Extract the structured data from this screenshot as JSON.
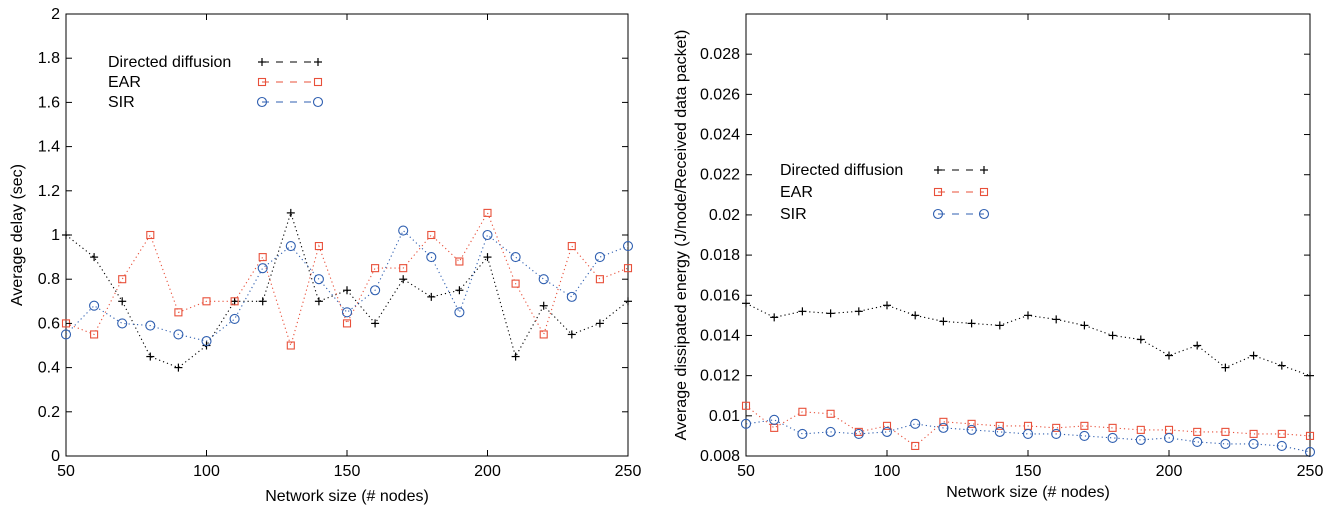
{
  "chart_data": [
    {
      "type": "scatter",
      "title": "",
      "xlabel": "Network size (# nodes)",
      "ylabel": "Average delay (sec)",
      "xlim": [
        50,
        250
      ],
      "ylim": [
        0,
        2
      ],
      "xticks": [
        "50",
        "100",
        "150",
        "200",
        "250"
      ],
      "yticks": [
        "0",
        "0.2",
        "0.4",
        "0.6",
        "0.8",
        "1",
        "1.2",
        "1.4",
        "1.6",
        "1.8",
        "2"
      ],
      "legend_position": "top-left",
      "grid": false,
      "x": [
        50,
        60,
        70,
        80,
        90,
        100,
        110,
        120,
        130,
        140,
        150,
        160,
        170,
        180,
        190,
        200,
        210,
        220,
        230,
        240,
        250
      ],
      "series": [
        {
          "name": "Directed diffusion",
          "marker": "plus",
          "color": "#000000",
          "values": [
            1.0,
            0.9,
            0.7,
            0.45,
            0.4,
            0.5,
            0.7,
            0.7,
            1.1,
            0.7,
            0.75,
            0.6,
            0.8,
            0.72,
            0.75,
            0.9,
            0.45,
            0.68,
            0.55,
            0.6,
            0.7
          ]
        },
        {
          "name": "EAR",
          "marker": "square",
          "color": "#e8503a",
          "values": [
            0.6,
            0.55,
            0.8,
            1.0,
            0.65,
            0.7,
            0.7,
            0.9,
            0.5,
            0.95,
            0.6,
            0.85,
            0.85,
            1.0,
            0.88,
            1.1,
            0.78,
            0.55,
            0.95,
            0.8,
            0.85
          ]
        },
        {
          "name": "SIR",
          "marker": "circle",
          "color": "#2f5fb0",
          "values": [
            0.55,
            0.68,
            0.6,
            0.59,
            0.55,
            0.52,
            0.62,
            0.85,
            0.95,
            0.8,
            0.65,
            0.75,
            1.02,
            0.9,
            0.65,
            1.0,
            0.9,
            0.8,
            0.72,
            0.9,
            0.95
          ]
        }
      ]
    },
    {
      "type": "scatter",
      "title": "",
      "xlabel": "Network size (# nodes)",
      "ylabel": "Average dissipated energy (J/node/Received data packet)",
      "xlim": [
        50,
        250
      ],
      "ylim": [
        0.008,
        0.03
      ],
      "xticks": [
        "50",
        "100",
        "150",
        "200",
        "250"
      ],
      "yticks": [
        "0.008",
        "0.01",
        "0.012",
        "0.014",
        "0.016",
        "0.018",
        "0.02",
        "0.022",
        "0.024",
        "0.026",
        "0.028"
      ],
      "legend_position": "middle-left",
      "grid": false,
      "x": [
        50,
        60,
        70,
        80,
        90,
        100,
        110,
        120,
        130,
        140,
        150,
        160,
        170,
        180,
        190,
        200,
        210,
        220,
        230,
        240,
        250
      ],
      "series": [
        {
          "name": "Directed diffusion",
          "marker": "plus",
          "color": "#000000",
          "values": [
            0.0156,
            0.0149,
            0.0152,
            0.0151,
            0.0152,
            0.0155,
            0.015,
            0.0147,
            0.0146,
            0.0145,
            0.015,
            0.0148,
            0.0145,
            0.014,
            0.0138,
            0.013,
            0.0135,
            0.0124,
            0.013,
            0.0125,
            0.012
          ]
        },
        {
          "name": "EAR",
          "marker": "square",
          "color": "#e8503a",
          "values": [
            0.0105,
            0.0094,
            0.0102,
            0.0101,
            0.0092,
            0.0095,
            0.0085,
            0.0097,
            0.0096,
            0.0095,
            0.0095,
            0.0094,
            0.0095,
            0.0094,
            0.0093,
            0.0093,
            0.0092,
            0.0092,
            0.0091,
            0.0091,
            0.009
          ]
        },
        {
          "name": "SIR",
          "marker": "circle",
          "color": "#2f5fb0",
          "values": [
            0.0096,
            0.0098,
            0.0091,
            0.0092,
            0.0091,
            0.0092,
            0.0096,
            0.0094,
            0.0093,
            0.0092,
            0.0091,
            0.0091,
            0.009,
            0.0089,
            0.0088,
            0.0089,
            0.0087,
            0.0086,
            0.0086,
            0.0085,
            0.0082
          ]
        }
      ]
    }
  ]
}
